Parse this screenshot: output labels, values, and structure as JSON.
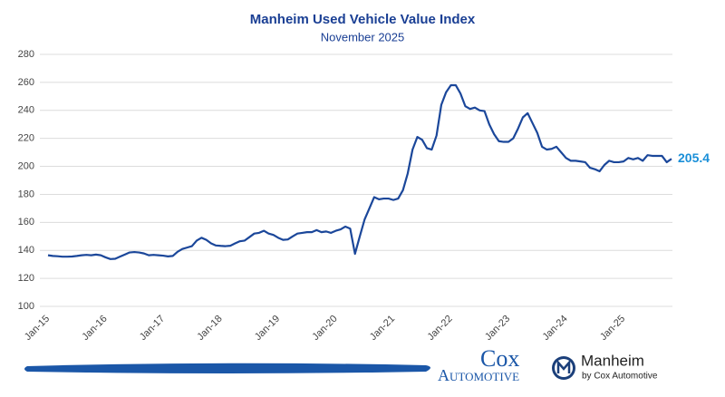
{
  "chart_data": {
    "type": "line",
    "title": "Manheim Used Vehicle Value Index",
    "subtitle": "November 2025",
    "categories": [
      "Jan-15",
      null,
      null,
      null,
      null,
      null,
      null,
      null,
      null,
      null,
      null,
      null,
      "Jan-16",
      null,
      null,
      null,
      null,
      null,
      null,
      null,
      null,
      null,
      null,
      null,
      "Jan-17",
      null,
      null,
      null,
      null,
      null,
      null,
      null,
      null,
      null,
      null,
      null,
      "Jan-18",
      null,
      null,
      null,
      null,
      null,
      null,
      null,
      null,
      null,
      null,
      null,
      "Jan-19",
      null,
      null,
      null,
      null,
      null,
      null,
      null,
      null,
      null,
      null,
      null,
      "Jan-20",
      null,
      null,
      null,
      null,
      null,
      null,
      null,
      null,
      null,
      null,
      null,
      "Jan-21",
      null,
      null,
      null,
      null,
      null,
      null,
      null,
      null,
      null,
      null,
      null,
      "Jan-22",
      null,
      null,
      null,
      null,
      null,
      null,
      null,
      null,
      null,
      null,
      null,
      "Jan-23",
      null,
      null,
      null,
      null,
      null,
      null,
      null,
      null,
      null,
      null,
      null,
      "Jan-24",
      null,
      null,
      null,
      null,
      null,
      null,
      null,
      null,
      null,
      null,
      null,
      "Jan-25",
      null,
      null,
      null,
      null,
      null,
      null,
      null,
      null,
      null,
      null
    ],
    "series": [
      {
        "name": "Manheim Used Vehicle Value Index",
        "color": "#1b479a",
        "values": [
          136.5,
          136,
          135.8,
          135.5,
          135.5,
          135.6,
          136,
          136.5,
          136.8,
          136.5,
          137,
          136.5,
          135,
          133.8,
          134,
          135.5,
          137,
          138.5,
          138.8,
          138.5,
          137.8,
          136.5,
          136.8,
          136.5,
          136.2,
          135.7,
          136,
          139,
          141,
          142,
          143,
          147,
          149,
          147.5,
          145,
          143.5,
          143.2,
          143,
          143.3,
          145,
          146.5,
          147,
          149.5,
          152,
          152.5,
          154,
          152,
          151,
          149,
          147.5,
          147.8,
          150,
          152,
          152.5,
          153,
          153,
          154.5,
          153,
          153.5,
          152.5,
          154,
          155,
          157,
          155.5,
          137.5,
          150,
          162,
          170,
          178,
          176.5,
          177,
          177,
          176,
          177,
          183,
          195,
          212,
          221,
          219,
          213,
          212,
          222,
          244,
          253,
          258,
          258,
          252,
          243,
          241,
          242,
          240,
          239.5,
          230,
          223,
          218,
          217.5,
          217.5,
          220,
          227,
          235,
          238,
          231,
          224,
          214,
          212,
          212.5,
          214,
          210,
          206,
          204,
          204,
          203.5,
          203,
          199,
          198,
          196.5,
          201,
          204,
          203,
          203,
          203.5,
          206,
          205,
          206,
          204,
          208,
          207.5,
          207.5,
          207.5,
          203,
          205.4
        ]
      }
    ],
    "ylim": [
      100,
      280
    ],
    "yticks": [
      100,
      120,
      140,
      160,
      180,
      200,
      220,
      240,
      260,
      280
    ],
    "grid": true
  },
  "footer": {
    "cox": "Cox",
    "automotive": "Automotive",
    "manheim": "Manheim",
    "by": "by Cox Automotive"
  }
}
